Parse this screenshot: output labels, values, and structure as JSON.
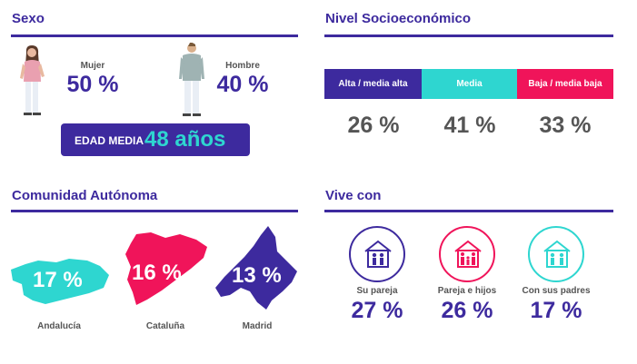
{
  "sexo": {
    "title": "Sexo",
    "mujer_label": "Mujer",
    "mujer_value": "50 %",
    "hombre_label": "Hombre",
    "hombre_value": "40 %",
    "edad_label": "EDAD MEDIA",
    "edad_value": "48 años"
  },
  "nivel": {
    "title": "Nivel Socioeconómico",
    "levels": [
      {
        "label": "Alta / media alta",
        "value": "26 %",
        "color": "#3d2a9e"
      },
      {
        "label": "Media",
        "value": "41 %",
        "color": "#2ed6d0"
      },
      {
        "label": "Baja / media baja",
        "value": "33 %",
        "color": "#f0145a"
      }
    ]
  },
  "comunidad": {
    "title": "Comunidad Autónoma",
    "regions": [
      {
        "label": "Andalucía",
        "value": "17 %",
        "color": "#2ed6d0"
      },
      {
        "label": "Cataluña",
        "value": "16 %",
        "color": "#f0145a"
      },
      {
        "label": "Madrid",
        "value": "13 %",
        "color": "#3d2a9e"
      }
    ]
  },
  "vive": {
    "title": "Vive con",
    "items": [
      {
        "label": "Su pareja",
        "value": "27 %",
        "color": "#3d2a9e"
      },
      {
        "label": "Pareja e hijos",
        "value": "26 %",
        "color": "#f0145a"
      },
      {
        "label": "Con sus padres",
        "value": "17 %",
        "color": "#2ed6d0"
      }
    ]
  },
  "colors": {
    "primary": "#3d2a9e",
    "teal": "#2ed6d0",
    "pink": "#f0145a",
    "grey_text": "#555555"
  }
}
